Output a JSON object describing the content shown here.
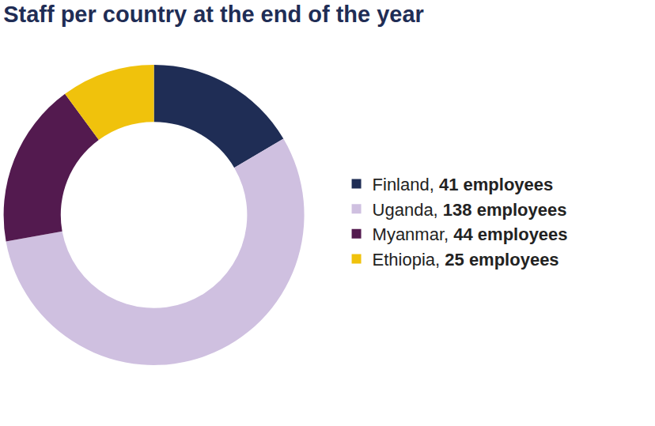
{
  "chart_data": {
    "type": "pie",
    "title": "Staff per country at the end of the year",
    "categories": [
      "Finland, 41 employees",
      "Uganda, 138 employees",
      "Myanmar, 44 employees",
      "Ethiopia, 25 employees"
    ],
    "values": [
      41,
      138,
      44,
      25
    ],
    "colors": [
      "#1f2d55",
      "#cfc0e0",
      "#531a4f",
      "#f0c20c"
    ],
    "legend": "right"
  }
}
